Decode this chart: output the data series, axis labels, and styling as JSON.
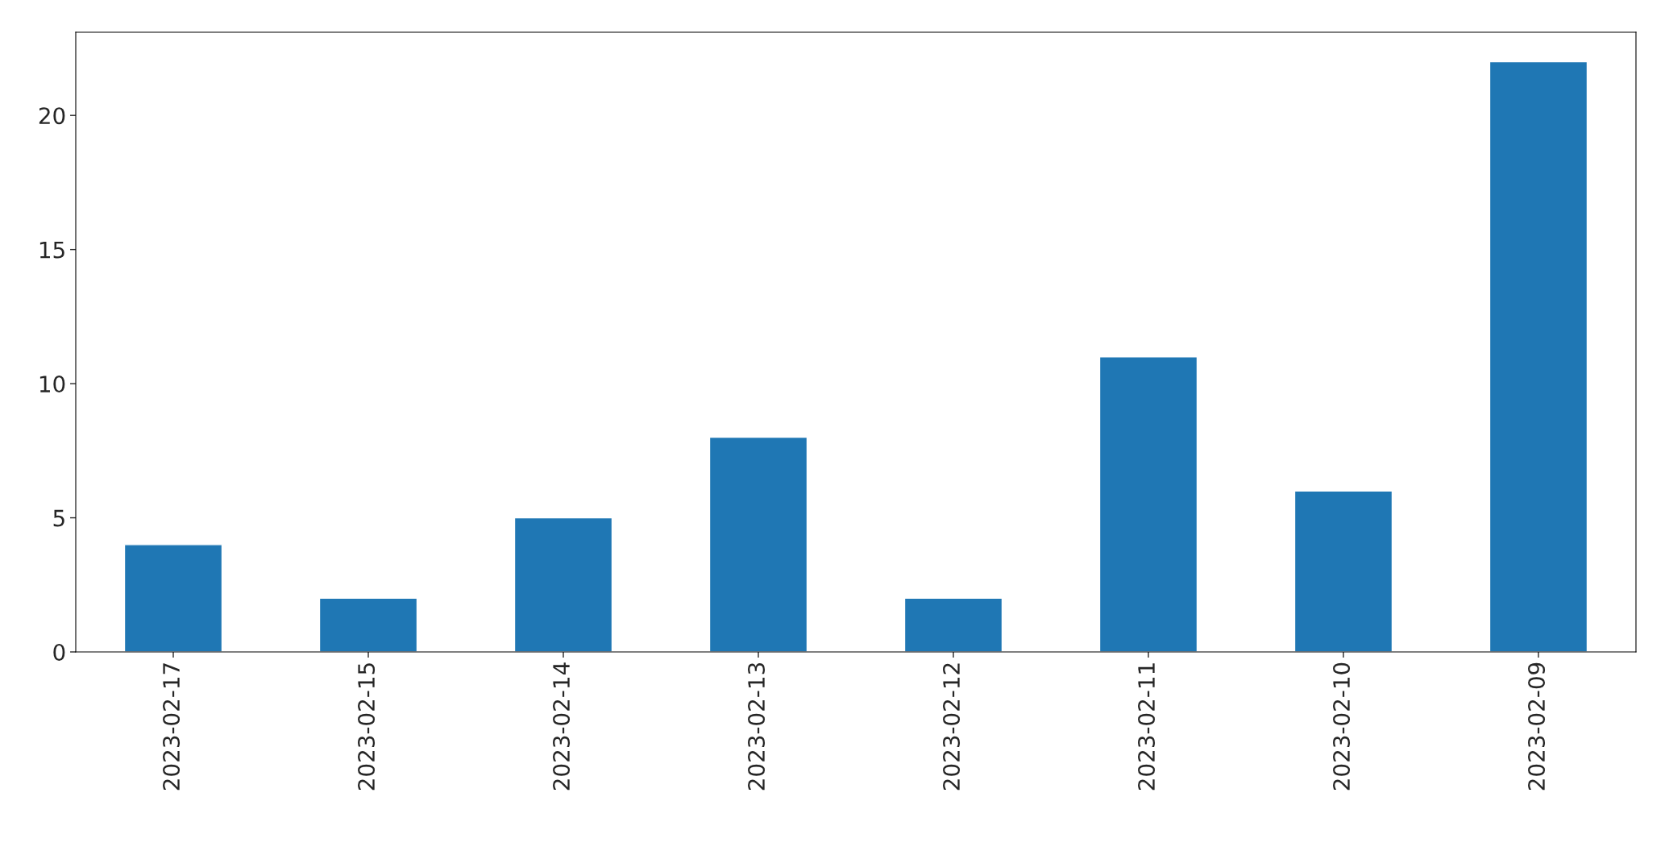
{
  "chart_data": {
    "type": "bar",
    "categories": [
      "2023-02-17",
      "2023-02-15",
      "2023-02-14",
      "2023-02-13",
      "2023-02-12",
      "2023-02-11",
      "2023-02-10",
      "2023-02-09"
    ],
    "values": [
      4,
      2,
      5,
      8,
      2,
      11,
      6,
      22
    ],
    "color": "#1f77b4",
    "ylim": [
      0,
      23.1
    ],
    "yticks": [
      0,
      5,
      10,
      15,
      20
    ],
    "grid": false
  }
}
